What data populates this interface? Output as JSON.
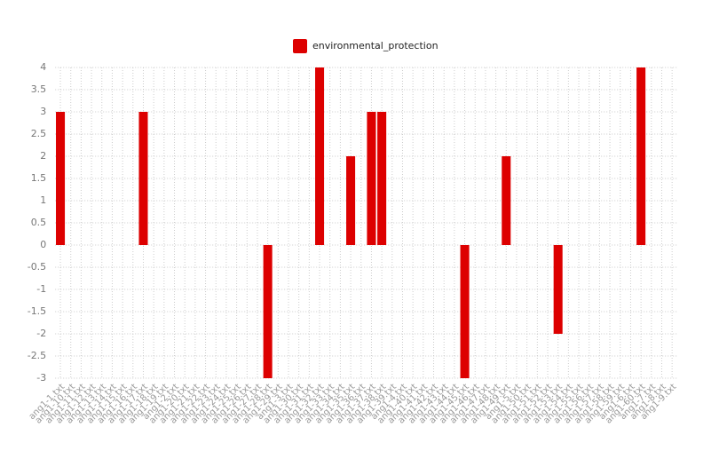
{
  "chart_data": {
    "type": "bar",
    "categories": [
      "ang1-1.txt",
      "ang1-10.txt",
      "ang1-11.txt",
      "ang1-12.txt",
      "ang1-13.txt",
      "ang1-14.txt",
      "ang1-15.txt",
      "ang1-16.txt",
      "ang1-17.txt",
      "ang1-18.txt",
      "ang1-19.txt",
      "ang1-2.txt",
      "ang1-20.txt",
      "ang1-21.txt",
      "ang1-22.txt",
      "ang1-23.txt",
      "ang1-24.txt",
      "ang1-25.txt",
      "ang1-26.txt",
      "ang1-27.txt",
      "ang1-28.txt",
      "ang1-29.txt",
      "ang1-3.txt",
      "ang1-30.txt",
      "ang1-31.txt",
      "ang1-32.txt",
      "ang1-33.txt",
      "ang1-34.txt",
      "ang1-35.txt",
      "ang1-36.txt",
      "ang1-37.txt",
      "ang1-38.txt",
      "ang1-39.txt",
      "ang1-4.txt",
      "ang1-40.txt",
      "ang1-41.txt",
      "ang1-42.txt",
      "ang1-43.txt",
      "ang1-44.txt",
      "ang1-45.txt",
      "ang1-46.txt",
      "ang1-47.txt",
      "ang1-48.txt",
      "ang1-49.txt",
      "ang1-5.txt",
      "ang1-50.txt",
      "ang1-51.txt",
      "ang1-52.txt",
      "ang1-53.txt",
      "ang1-54.txt",
      "ang1-55.txt",
      "ang1-56.txt",
      "ang1-57.txt",
      "ang1-58.txt",
      "ang1-59.txt",
      "ang1-6.txt",
      "ang1-60.txt",
      "ang1-7.txt",
      "ang1-8.txt",
      "ang1-9.txt"
    ],
    "series": [
      {
        "name": "environmental_protection",
        "color": "#dd0000",
        "values": [
          3,
          0,
          0,
          0,
          0,
          0,
          0,
          0,
          3,
          0,
          0,
          0,
          0,
          0,
          0,
          0,
          0,
          0,
          0,
          0,
          -3,
          0,
          0,
          0,
          0,
          4,
          0,
          0,
          2,
          0,
          3,
          3,
          0,
          0,
          0,
          0,
          0,
          0,
          0,
          -3,
          0,
          0,
          0,
          2,
          0,
          0,
          0,
          0,
          -2,
          0,
          0,
          0,
          0,
          0,
          0,
          0,
          4,
          0,
          0,
          0
        ]
      }
    ],
    "ylim": [
      -3,
      4
    ],
    "yticks": [
      -3,
      -2.5,
      -2,
      -1.5,
      -1,
      -0.5,
      0,
      0.5,
      1,
      1.5,
      2,
      2.5,
      3,
      3.5,
      4
    ],
    "grid": true,
    "legend": "top"
  }
}
